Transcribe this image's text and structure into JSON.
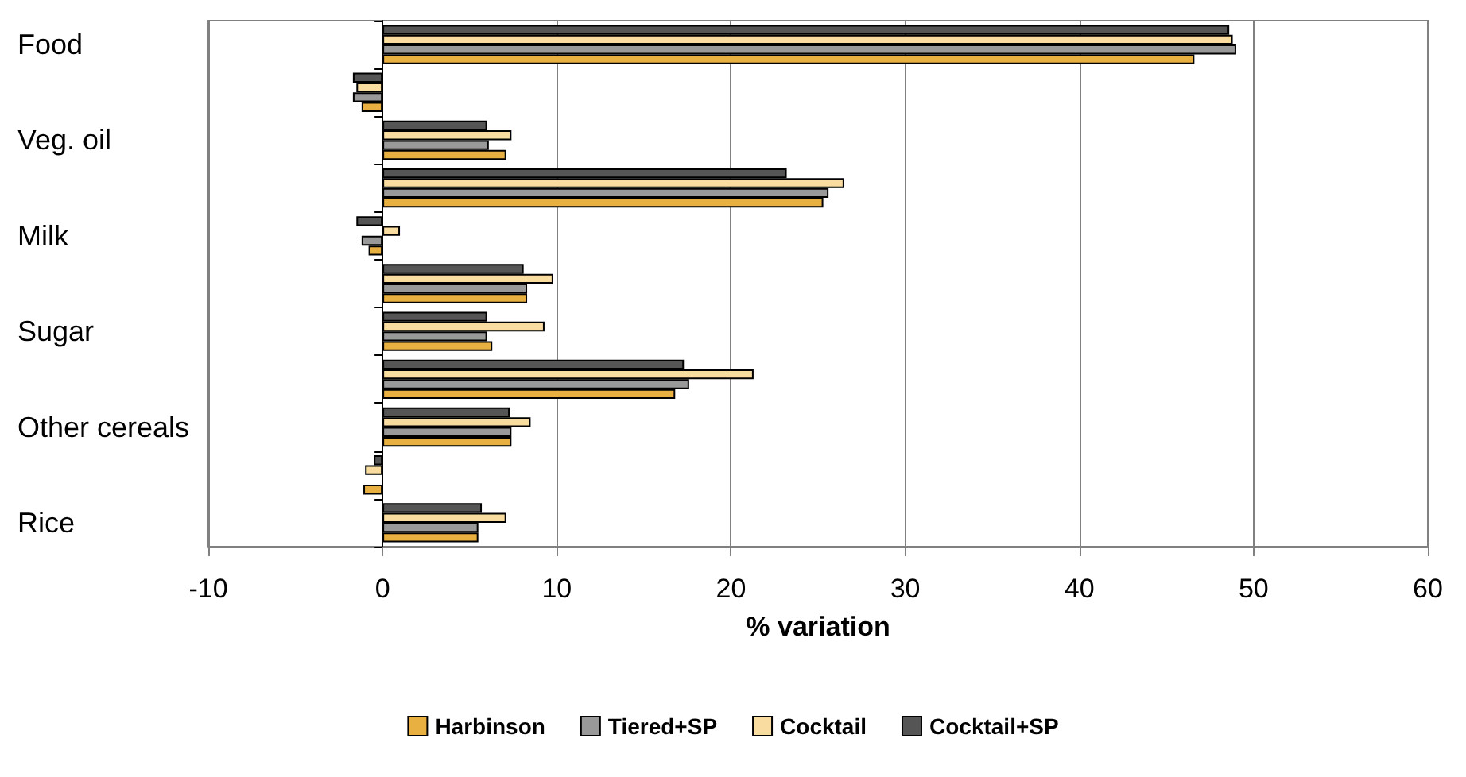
{
  "chart_data": {
    "type": "bar",
    "orientation": "horizontal",
    "xlabel": "% variation",
    "categories": [
      "Food",
      null,
      "Veg. oil",
      null,
      "Milk",
      null,
      "Sugar",
      null,
      "Other cereals",
      null,
      "Rice"
    ],
    "series": [
      {
        "name": "Harbinson",
        "color": "#e8b040",
        "values": [
          46.6,
          -1.2,
          7.1,
          25.3,
          -0.8,
          8.3,
          6.3,
          16.8,
          7.4,
          -1.1,
          5.5
        ]
      },
      {
        "name": "Tiered+SP",
        "color": "#999999",
        "values": [
          49.0,
          -1.7,
          6.1,
          25.6,
          -1.2,
          8.3,
          6.0,
          17.6,
          7.4,
          null,
          5.5
        ]
      },
      {
        "name": "Cocktail",
        "color": "#f8dca0",
        "values": [
          48.8,
          -1.5,
          7.4,
          26.5,
          1.0,
          9.8,
          9.3,
          21.3,
          8.5,
          -1.0,
          7.1
        ]
      },
      {
        "name": "Cocktail+SP",
        "color": "#555555",
        "values": [
          48.6,
          -1.7,
          6.0,
          23.2,
          -1.5,
          8.1,
          6.0,
          17.3,
          7.3,
          -0.5,
          5.7
        ]
      }
    ],
    "xlim": [
      -10,
      60
    ],
    "xticks": [
      -10,
      0,
      10,
      20,
      30,
      40,
      50,
      60
    ],
    "grid": "x",
    "legend": "bottom"
  }
}
